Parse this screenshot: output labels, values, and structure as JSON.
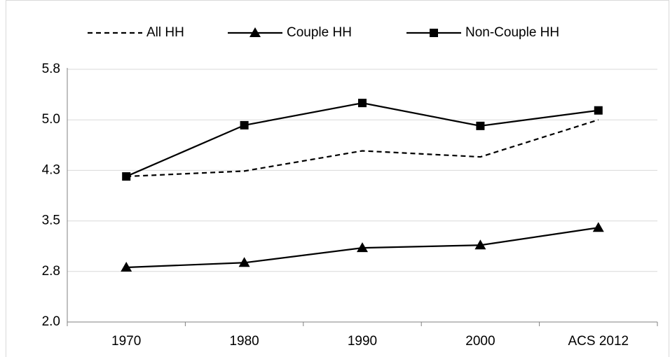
{
  "chart_data": {
    "type": "line",
    "categories": [
      "1970",
      "1980",
      "1990",
      "2000",
      "ACS 2012"
    ],
    "series": [
      {
        "name": "All HH",
        "color": "#000000",
        "dash": true,
        "marker": "none",
        "values": [
          4.16,
          4.24,
          4.54,
          4.45,
          5.0
        ]
      },
      {
        "name": "Couple HH",
        "color": "#000000",
        "dash": false,
        "marker": "triangle",
        "values": [
          2.81,
          2.88,
          3.1,
          3.14,
          3.4
        ]
      },
      {
        "name": "Non-Couple HH",
        "color": "#000000",
        "dash": false,
        "marker": "square",
        "values": [
          4.16,
          4.92,
          5.25,
          4.91,
          5.14
        ]
      }
    ],
    "ylim": [
      2,
      5.75
    ],
    "yticks": [
      {
        "value": 2,
        "label": "2.0"
      },
      {
        "value": 2.75,
        "label": "2.8"
      },
      3.5,
      {
        "value": 4.25,
        "label": "4.3"
      },
      {
        "value": 5,
        "label": "5.0"
      },
      {
        "value": 5.75,
        "label": "5.8"
      }
    ],
    "grid": true,
    "legend": "top"
  }
}
